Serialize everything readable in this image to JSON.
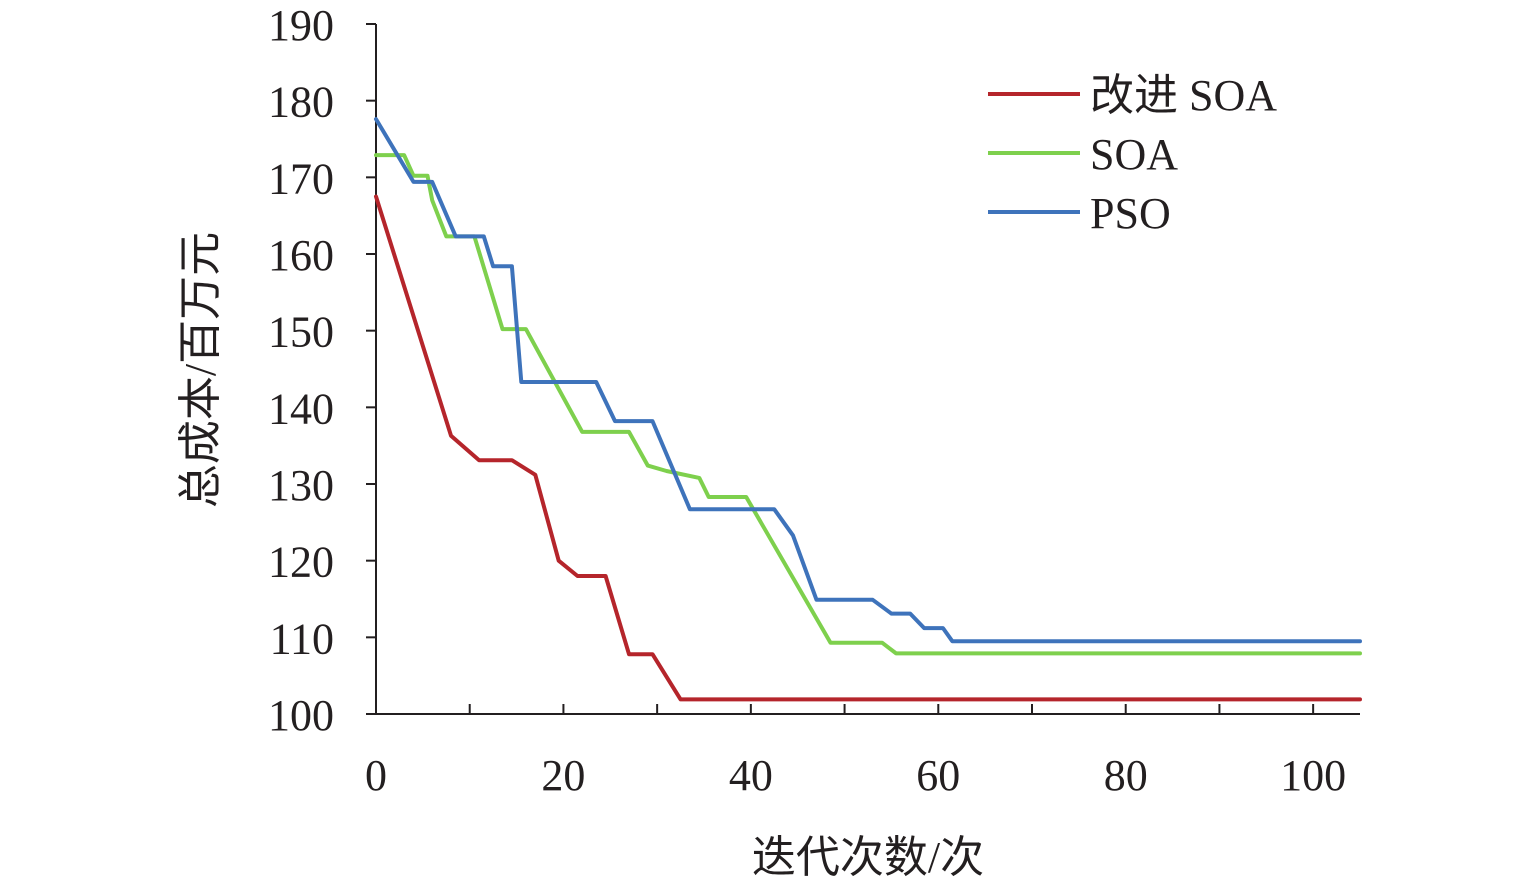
{
  "chart_data": {
    "type": "line",
    "title": "",
    "xlabel": "迭代次数/次",
    "ylabel": "总成本/百万元",
    "xlim": [
      0,
      105
    ],
    "ylim": [
      100,
      190
    ],
    "xticks": [
      0,
      20,
      40,
      60,
      80,
      100
    ],
    "yticks": [
      100,
      110,
      120,
      130,
      140,
      150,
      160,
      170,
      180,
      190
    ],
    "grid": false,
    "legend_position": "top-right",
    "series": [
      {
        "name": "改进 SOA",
        "color": "#b5252b",
        "points": [
          [
            0,
            167.5
          ],
          [
            8,
            136.3
          ],
          [
            11,
            133.1
          ],
          [
            14.5,
            133.1
          ],
          [
            17,
            131.2
          ],
          [
            19.5,
            120
          ],
          [
            21.5,
            118
          ],
          [
            24.5,
            118
          ],
          [
            27,
            107.8
          ],
          [
            29.5,
            107.8
          ],
          [
            32.5,
            101.9
          ],
          [
            105,
            101.9
          ]
        ]
      },
      {
        "name": "SOA",
        "color": "#7ed04d",
        "points": [
          [
            0,
            172.9
          ],
          [
            3,
            172.9
          ],
          [
            4,
            170.2
          ],
          [
            5.5,
            170.2
          ],
          [
            6,
            167
          ],
          [
            7.5,
            162.3
          ],
          [
            10.5,
            162.3
          ],
          [
            13.5,
            150.2
          ],
          [
            16,
            150.2
          ],
          [
            22,
            136.8
          ],
          [
            27,
            136.8
          ],
          [
            29,
            132.4
          ],
          [
            31,
            131.7
          ],
          [
            34.5,
            130.8
          ],
          [
            35.5,
            128.3
          ],
          [
            39.5,
            128.3
          ],
          [
            48.5,
            109.3
          ],
          [
            54,
            109.3
          ],
          [
            55.5,
            107.9
          ],
          [
            105,
            107.9
          ]
        ]
      },
      {
        "name": "PSO",
        "color": "#3e73bb",
        "points": [
          [
            0,
            177.6
          ],
          [
            4,
            169.4
          ],
          [
            6,
            169.4
          ],
          [
            8.5,
            162.3
          ],
          [
            11.5,
            162.3
          ],
          [
            12.5,
            158.4
          ],
          [
            14.5,
            158.4
          ],
          [
            15.5,
            143.3
          ],
          [
            23.5,
            143.3
          ],
          [
            25.5,
            138.2
          ],
          [
            29.5,
            138.2
          ],
          [
            33.5,
            126.7
          ],
          [
            42.5,
            126.7
          ],
          [
            44.5,
            123.3
          ],
          [
            47,
            114.9
          ],
          [
            53,
            114.9
          ],
          [
            55,
            113.1
          ],
          [
            57,
            113.1
          ],
          [
            58.5,
            111.2
          ],
          [
            60.5,
            111.2
          ],
          [
            61.5,
            109.5
          ],
          [
            105,
            109.5
          ]
        ]
      }
    ]
  }
}
